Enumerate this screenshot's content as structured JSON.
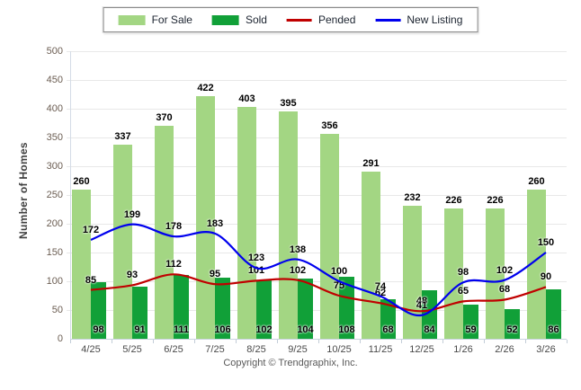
{
  "footer": "Copyright © Trendgraphix, Inc.",
  "palette": {
    "for_sale": "#A3D683",
    "sold": "#11A038",
    "pended": "#C00000",
    "new_listing": "#0000EE",
    "grid": "#E8E8E8",
    "y_label_color": "#6B5D52"
  },
  "chart_data": {
    "type": "bar",
    "title": "",
    "categories": [
      "4/25",
      "5/25",
      "6/25",
      "7/25",
      "8/25",
      "9/25",
      "10/25",
      "11/25",
      "12/25",
      "1/26",
      "2/26",
      "3/26"
    ],
    "series": [
      {
        "name": "For Sale",
        "kind": "bar",
        "color": "#A3D683",
        "values": [
          260,
          337,
          370,
          422,
          403,
          395,
          356,
          291,
          232,
          226,
          226,
          260
        ]
      },
      {
        "name": "Sold",
        "kind": "bar",
        "color": "#11A038",
        "values": [
          98,
          91,
          111,
          106,
          102,
          104,
          108,
          68,
          84,
          59,
          52,
          86
        ]
      },
      {
        "name": "Pended",
        "kind": "line",
        "color": "#C00000",
        "values": [
          85,
          93,
          112,
          95,
          101,
          102,
          75,
          62,
          48,
          65,
          68,
          90
        ]
      },
      {
        "name": "New Listing",
        "kind": "line",
        "color": "#0000EE",
        "values": [
          172,
          199,
          178,
          183,
          123,
          138,
          100,
          74,
          41,
          98,
          102,
          150
        ]
      }
    ],
    "xlabel": "",
    "ylabel": "Number of Homes",
    "ylim": [
      0,
      500
    ],
    "ytick_step": 50,
    "grid": true,
    "legend_position": "top-center"
  }
}
